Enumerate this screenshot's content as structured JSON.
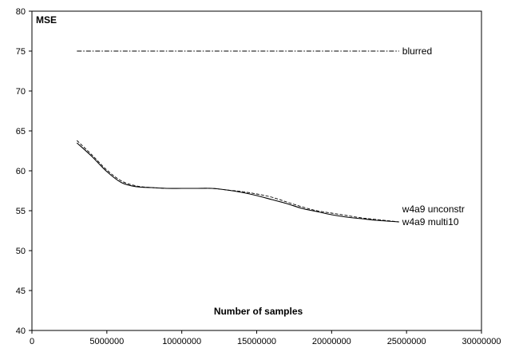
{
  "chart_data": {
    "type": "line",
    "xlabel": "Number of samples",
    "ylabel": "MSE",
    "xlim": [
      0,
      30000000
    ],
    "ylim": [
      40,
      80
    ],
    "xticks": [
      0,
      5000000,
      10000000,
      15000000,
      20000000,
      25000000,
      30000000
    ],
    "yticks": [
      40,
      45,
      50,
      55,
      60,
      65,
      70,
      75,
      80
    ],
    "grid": false,
    "legend": "direct labels at line ends",
    "series": [
      {
        "name": "blurred",
        "style": "dash-dot",
        "x": [
          3000000,
          24500000
        ],
        "y": [
          75.0,
          75.0
        ]
      },
      {
        "name": "w4a9 unconstr",
        "style": "dashed",
        "x": [
          3000000,
          4000000,
          5000000,
          6000000,
          7000000,
          8000000,
          9000000,
          10000000,
          11000000,
          12000000,
          13000000,
          14000000,
          15000000,
          16000000,
          17000000,
          18000000,
          19000000,
          20000000,
          21000000,
          22000000,
          23000000,
          24500000
        ],
        "y": [
          63.8,
          62.0,
          60.1,
          58.7,
          58.1,
          57.9,
          57.8,
          57.8,
          57.8,
          57.8,
          57.6,
          57.4,
          57.1,
          56.7,
          56.1,
          55.5,
          55.0,
          54.7,
          54.4,
          54.1,
          53.9,
          53.6
        ]
      },
      {
        "name": "w4a9 multi10",
        "style": "solid",
        "x": [
          3000000,
          4000000,
          5000000,
          6000000,
          7000000,
          8000000,
          9000000,
          10000000,
          11000000,
          12000000,
          13000000,
          14000000,
          15000000,
          16000000,
          17000000,
          18000000,
          19000000,
          20000000,
          21000000,
          22000000,
          23000000,
          24500000
        ],
        "y": [
          63.5,
          61.8,
          59.9,
          58.5,
          58.0,
          57.9,
          57.8,
          57.8,
          57.8,
          57.8,
          57.6,
          57.3,
          56.9,
          56.4,
          55.9,
          55.3,
          54.9,
          54.5,
          54.2,
          54.0,
          53.8,
          53.6
        ]
      }
    ]
  }
}
